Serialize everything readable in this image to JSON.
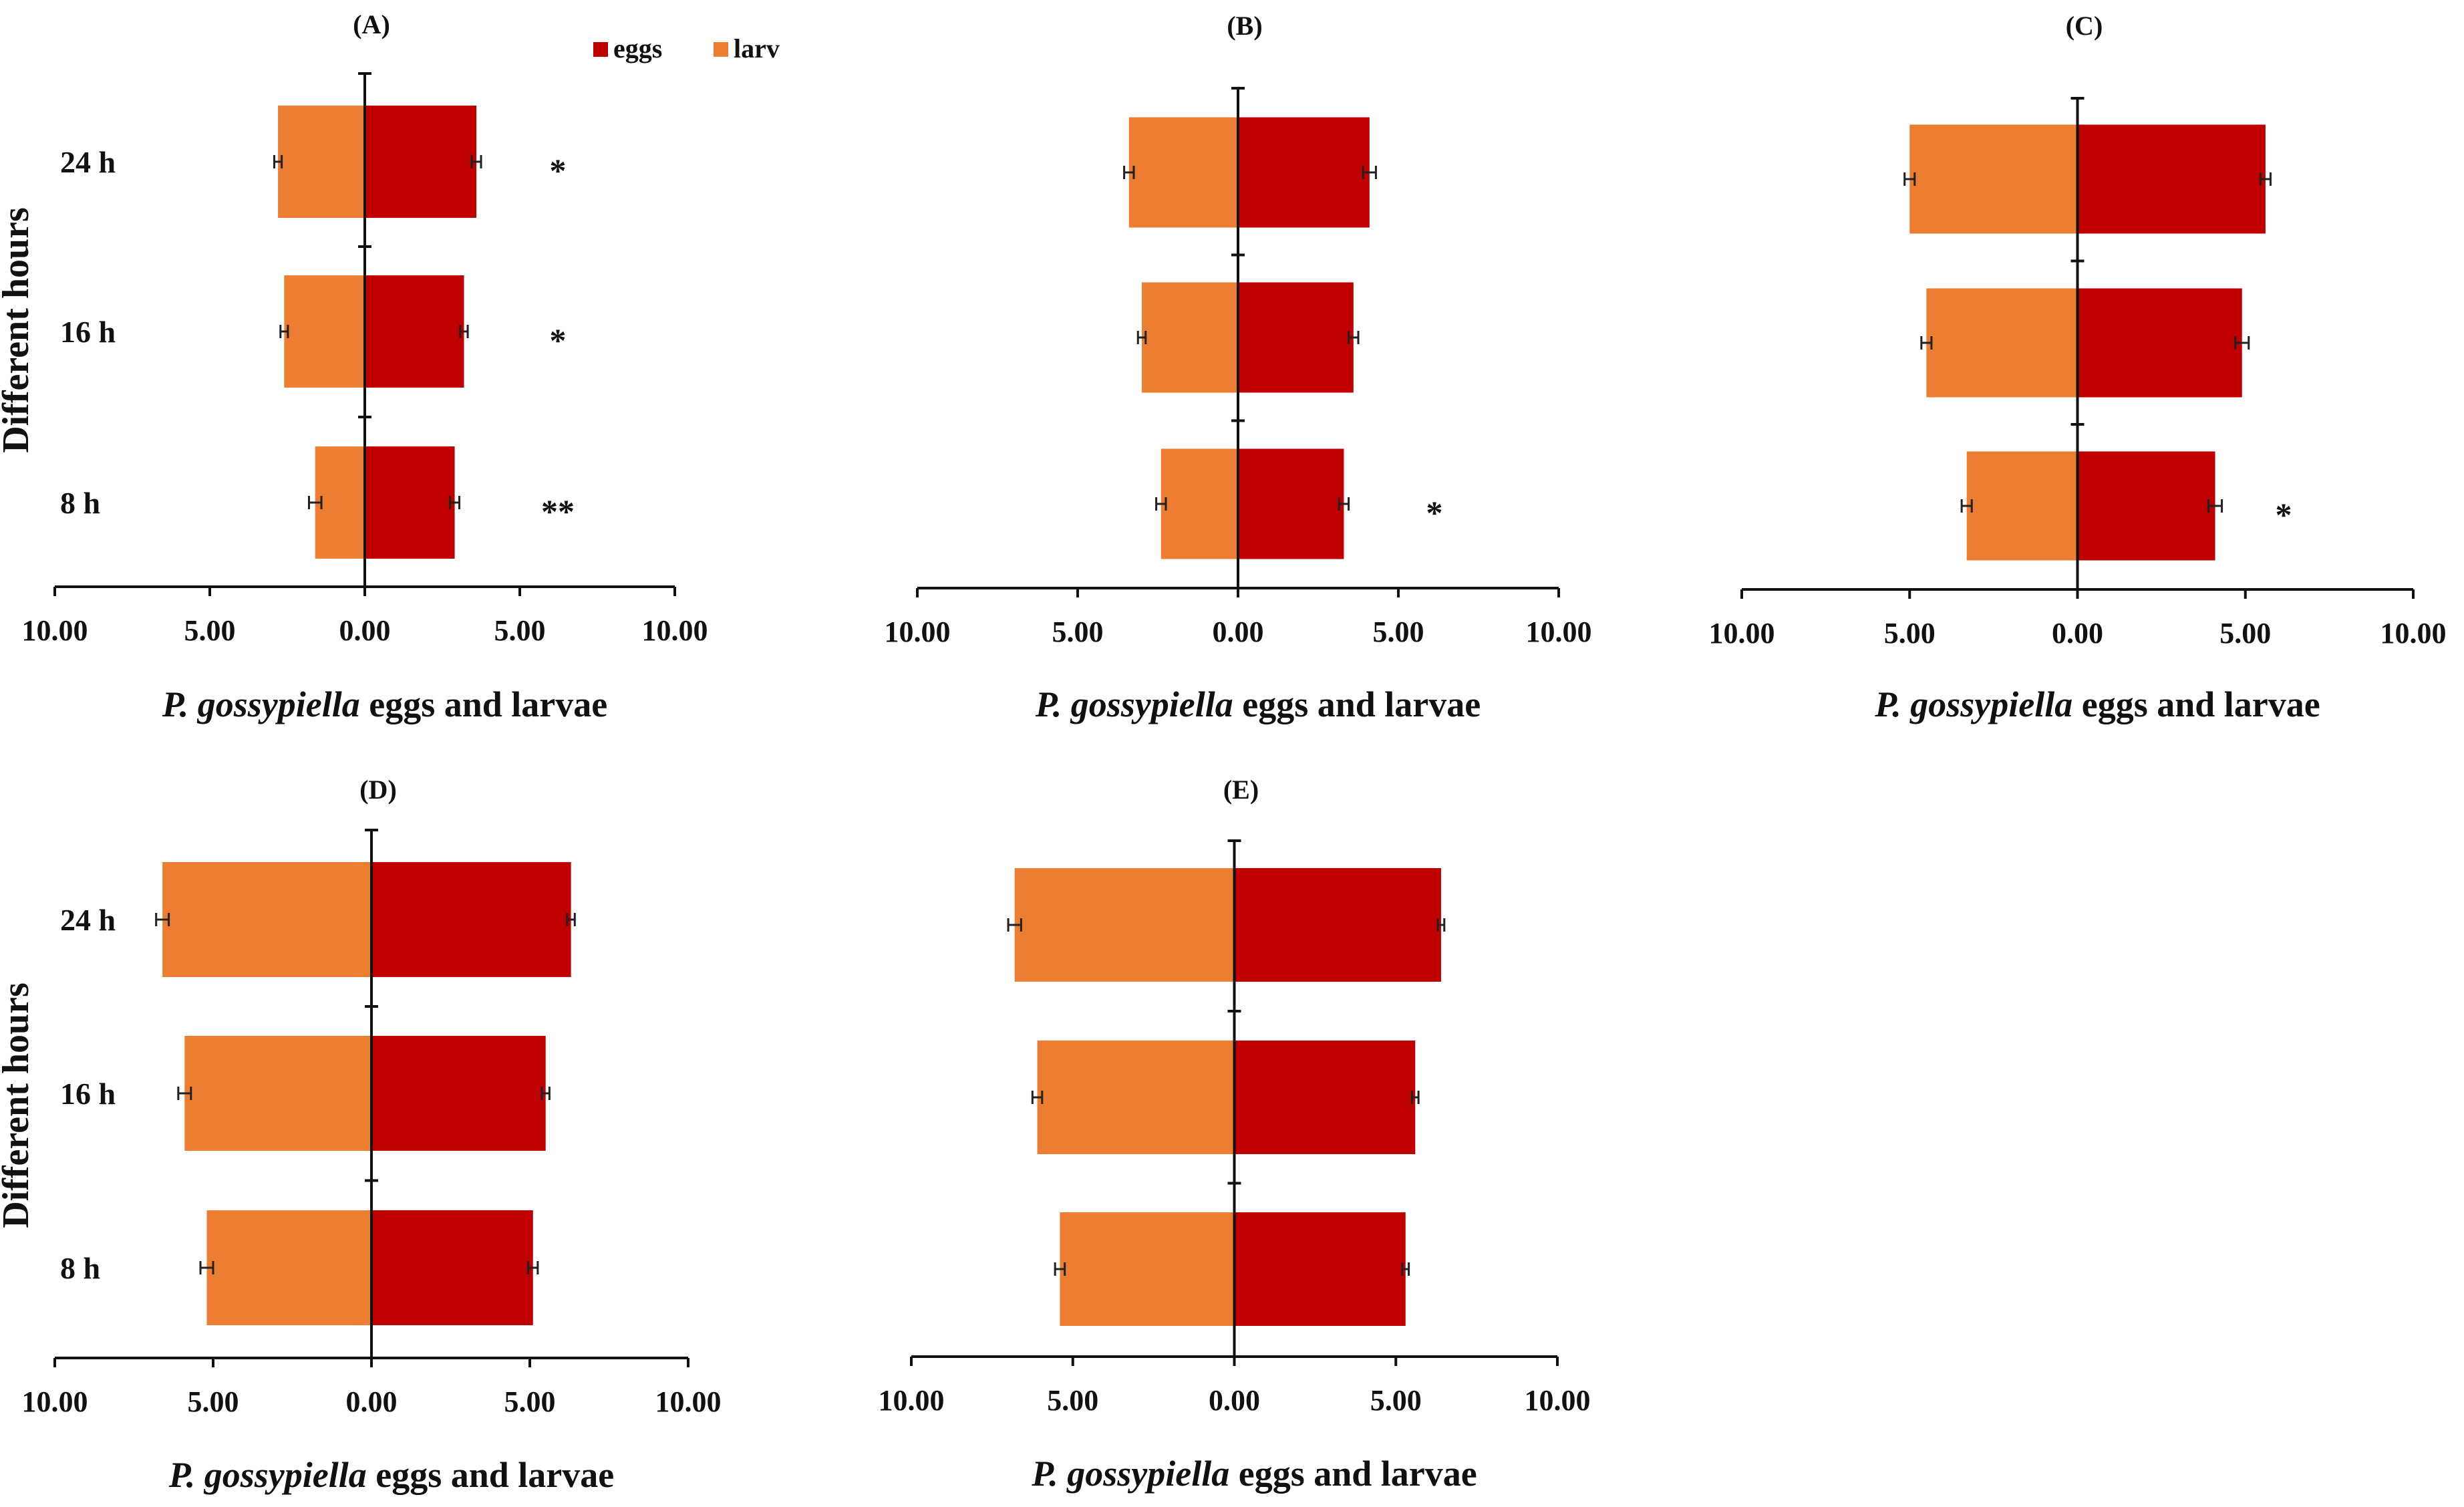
{
  "legend": [
    {
      "key": "eggs",
      "label": "eggs",
      "color": "#c00000"
    },
    {
      "key": "larv",
      "label": "larv",
      "color": "#ed7d31"
    }
  ],
  "axis_labels": {
    "y": "Different hours",
    "x_italic": "P. gossypiella",
    "x_rest": " eggs and larvae"
  },
  "x_tick_labels": [
    "10.00",
    "5.00",
    "0.00",
    "5.00",
    "10.00"
  ],
  "chart_data": [
    {
      "type": "bar",
      "title": "(A)",
      "orientation": "horizontal-butterfly",
      "categories": [
        "24 h",
        "16 h",
        "8 h"
      ],
      "xlim": [
        -10,
        10
      ],
      "series": [
        {
          "name": "eggs",
          "values": [
            3.6,
            3.2,
            2.9
          ],
          "errors": [
            0.15,
            0.12,
            0.15
          ]
        },
        {
          "name": "larv",
          "values": [
            2.8,
            2.6,
            1.6
          ],
          "errors": [
            0.12,
            0.12,
            0.2
          ]
        }
      ],
      "significance": [
        "*",
        "*",
        "**"
      ]
    },
    {
      "type": "bar",
      "title": "(B)",
      "orientation": "horizontal-butterfly",
      "categories": [
        "24 h",
        "16 h",
        "8 h"
      ],
      "xlim": [
        -10,
        10
      ],
      "series": [
        {
          "name": "eggs",
          "values": [
            4.1,
            3.6,
            3.3
          ],
          "errors": [
            0.2,
            0.15,
            0.15
          ]
        },
        {
          "name": "larv",
          "values": [
            3.4,
            3.0,
            2.4
          ],
          "errors": [
            0.15,
            0.12,
            0.15
          ]
        }
      ],
      "significance": [
        "",
        "",
        "*"
      ]
    },
    {
      "type": "bar",
      "title": "(C)",
      "orientation": "horizontal-butterfly",
      "categories": [
        "24 h",
        "16 h",
        "8 h"
      ],
      "xlim": [
        -10,
        10
      ],
      "series": [
        {
          "name": "eggs",
          "values": [
            5.6,
            4.9,
            4.1
          ],
          "errors": [
            0.15,
            0.2,
            0.2
          ]
        },
        {
          "name": "larv",
          "values": [
            5.0,
            4.5,
            3.3
          ],
          "errors": [
            0.15,
            0.15,
            0.15
          ]
        }
      ],
      "significance": [
        "",
        "",
        "*"
      ]
    },
    {
      "type": "bar",
      "title": "(D)",
      "orientation": "horizontal-butterfly",
      "categories": [
        "24 h",
        "16 h",
        "8 h"
      ],
      "xlim": [
        -10,
        10
      ],
      "series": [
        {
          "name": "eggs",
          "values": [
            6.3,
            5.5,
            5.1
          ],
          "errors": [
            0.12,
            0.12,
            0.15
          ]
        },
        {
          "name": "larv",
          "values": [
            6.6,
            5.9,
            5.2
          ],
          "errors": [
            0.2,
            0.2,
            0.2
          ]
        }
      ],
      "significance": [
        "",
        "",
        ""
      ]
    },
    {
      "type": "bar",
      "title": "(E)",
      "orientation": "horizontal-butterfly",
      "categories": [
        "24 h",
        "16 h",
        "8 h"
      ],
      "xlim": [
        -10,
        10
      ],
      "series": [
        {
          "name": "eggs",
          "values": [
            6.4,
            5.6,
            5.3
          ],
          "errors": [
            0.1,
            0.1,
            0.1
          ]
        },
        {
          "name": "larv",
          "values": [
            6.8,
            6.1,
            5.4
          ],
          "errors": [
            0.2,
            0.15,
            0.15
          ]
        }
      ],
      "significance": [
        "",
        "",
        ""
      ]
    }
  ]
}
